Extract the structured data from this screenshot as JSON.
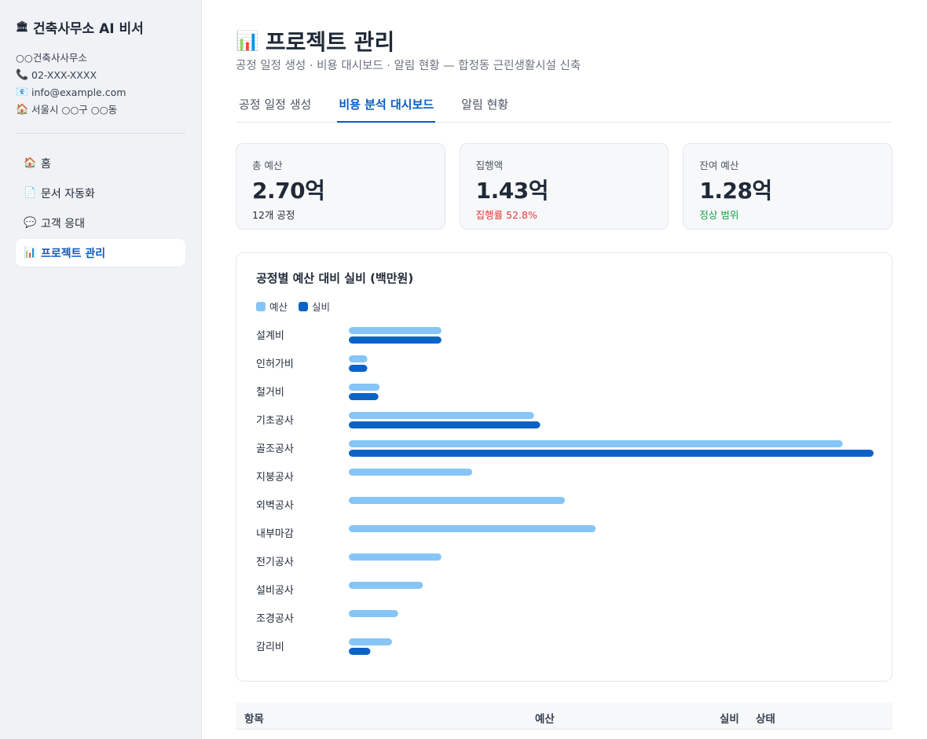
{
  "sidebar": {
    "title": "건축사무소 AI 비서",
    "title_icon": "building-icon",
    "info": [
      {
        "icon": "",
        "text": "○○건축사사무소"
      },
      {
        "icon": "📞",
        "text": "02-XXX-XXXX"
      },
      {
        "icon": "📧",
        "text": "info@example.com"
      },
      {
        "icon": "🏠",
        "text": "서울시 ○○구 ○○동"
      }
    ],
    "nav": [
      {
        "icon": "🏠",
        "label": "홈"
      },
      {
        "icon": "📄",
        "label": "문서 자동화"
      },
      {
        "icon": "💬",
        "label": "고객 응대"
      },
      {
        "icon": "📊",
        "label": "프로젝트 관리",
        "active": true
      }
    ]
  },
  "header": {
    "title": "프로젝트 관리",
    "subtitle": "공정 일정 생성 · 비용 대시보드 · 알림 현황 — 합정동 근린생활시설 신축"
  },
  "tabs": [
    {
      "label": "공정 일정 생성"
    },
    {
      "label": "비용 분석 대시보드",
      "active": true
    },
    {
      "label": "알림 현황"
    }
  ],
  "cards": [
    {
      "label": "총 예산",
      "value": "2.70억",
      "sub": "12개 공정",
      "sub_color": "#1f2937"
    },
    {
      "label": "집행액",
      "value": "1.43억",
      "sub": "집행률 52.8%",
      "sub_color": "#e53935"
    },
    {
      "label": "잔여 예산",
      "value": "1.28억",
      "sub": "정상 범위",
      "sub_color": "#16a34a"
    }
  ],
  "colors": {
    "budget": "#85c5f7",
    "actual": "#0b63c5",
    "accent": "#0a5bc4"
  },
  "chart_data": {
    "type": "bar",
    "orientation": "horizontal",
    "title": "공정별 예산 대비 실비 (백만원)",
    "legend": "top-left",
    "xlim": [
      0,
      85
    ],
    "grid": false,
    "categories": [
      "설계비",
      "인허가비",
      "철거비",
      "기초공사",
      "골조공사",
      "지붕공사",
      "외벽공사",
      "내부마감",
      "전기공사",
      "설비공사",
      "조경공사",
      "감리비"
    ],
    "series": [
      {
        "name": "예산",
        "values": [
          15,
          3,
          5,
          30,
          80,
          20,
          35,
          40,
          15,
          12,
          8,
          7
        ]
      },
      {
        "name": "실비",
        "values": [
          15,
          3,
          4.8,
          31,
          85,
          null,
          null,
          null,
          null,
          null,
          null,
          3.5
        ]
      }
    ]
  },
  "table": {
    "headers": [
      "항목",
      "예산",
      "실비",
      "상태"
    ]
  }
}
